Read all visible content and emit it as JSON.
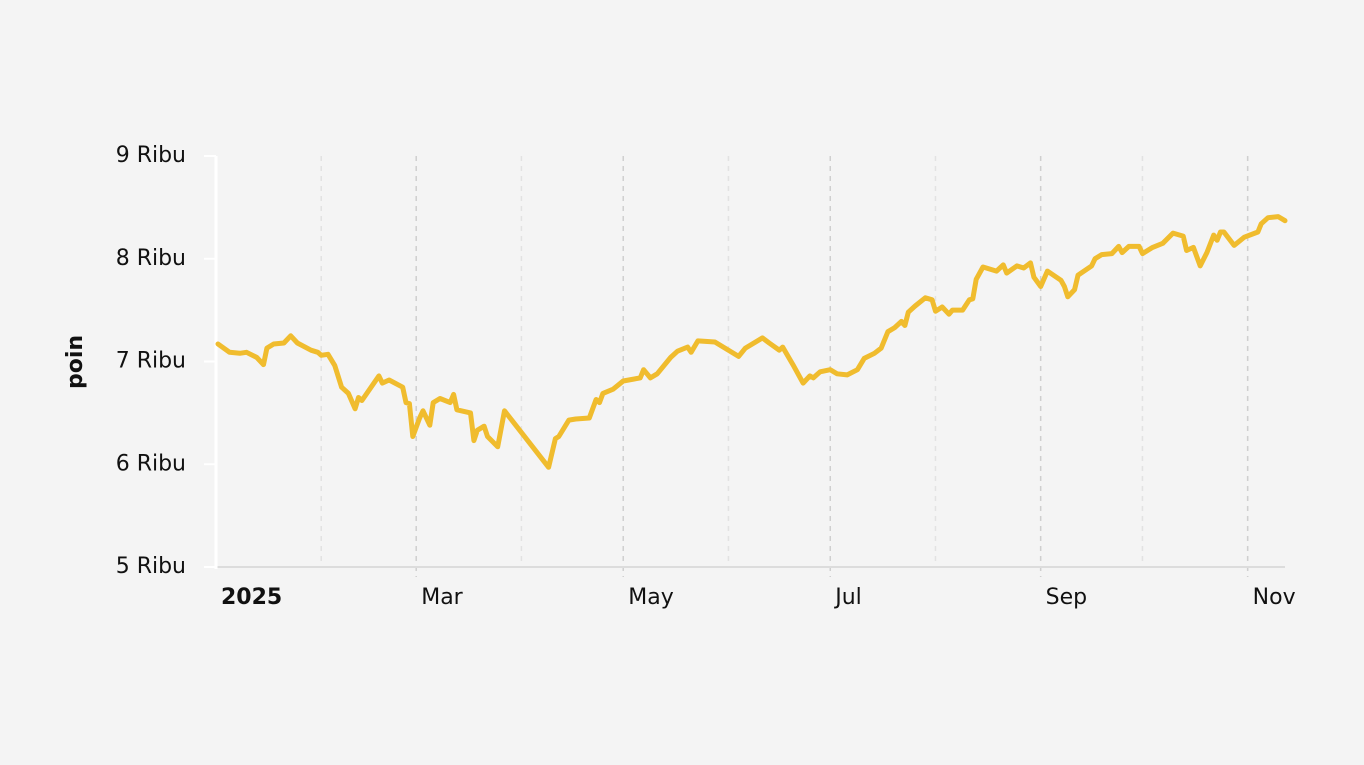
{
  "chart_data": {
    "type": "line",
    "y_label": "poin",
    "color": "#f0bc2e",
    "x": [
      0.6,
      4,
      7,
      9,
      12,
      14,
      15,
      17,
      20,
      22,
      24,
      28,
      30,
      31,
      33,
      35,
      37,
      39,
      41,
      42,
      43,
      48,
      49,
      51,
      55,
      56,
      57,
      58,
      60,
      61,
      63,
      64,
      66,
      69,
      70,
      71,
      75,
      76,
      77,
      79,
      80,
      83,
      85,
      98,
      100,
      101,
      104,
      106,
      110,
      112,
      113,
      114,
      117,
      120,
      125,
      126,
      128,
      130,
      134,
      136,
      139,
      140,
      142,
      147,
      154,
      156,
      161,
      163,
      166,
      167,
      170,
      173,
      175,
      176,
      178,
      181,
      183,
      186,
      189,
      191,
      194,
      196,
      198,
      200,
      202,
      203,
      204,
      206,
      209,
      211,
      212,
      214,
      216,
      217,
      220,
      222,
      223,
      224,
      226,
      230,
      232,
      233,
      236,
      238,
      240,
      241,
      243,
      245,
      249,
      250,
      251,
      253,
      254,
      258,
      259,
      261,
      264,
      266,
      267,
      269,
      272,
      273,
      276,
      279,
      282,
      285,
      286,
      288,
      290,
      292,
      294,
      295,
      296,
      297,
      300,
      303,
      307,
      308,
      310,
      313,
      315
    ],
    "values": [
      7170,
      7090,
      7080,
      7090,
      7040,
      6970,
      7130,
      7170,
      7180,
      7250,
      7180,
      7110,
      7090,
      7060,
      7070,
      6960,
      6750,
      6690,
      6540,
      6650,
      6620,
      6860,
      6790,
      6820,
      6750,
      6600,
      6590,
      6270,
      6450,
      6520,
      6380,
      6600,
      6640,
      6600,
      6680,
      6530,
      6500,
      6230,
      6330,
      6370,
      6270,
      6170,
      6520,
      5970,
      6250,
      6270,
      6430,
      6440,
      6450,
      6630,
      6600,
      6690,
      6730,
      6810,
      6840,
      6920,
      6840,
      6880,
      7040,
      7100,
      7140,
      7090,
      7200,
      7190,
      7050,
      7130,
      7230,
      7180,
      7110,
      7140,
      6970,
      6790,
      6860,
      6840,
      6900,
      6920,
      6880,
      6870,
      6920,
      7030,
      7080,
      7130,
      7290,
      7330,
      7390,
      7350,
      7480,
      7540,
      7620,
      7600,
      7490,
      7530,
      7460,
      7500,
      7500,
      7600,
      7610,
      7800,
      7920,
      7880,
      7940,
      7860,
      7930,
      7910,
      7960,
      7820,
      7730,
      7880,
      7790,
      7730,
      7630,
      7700,
      7840,
      7930,
      8000,
      8040,
      8050,
      8120,
      8060,
      8120,
      8120,
      8050,
      8110,
      8150,
      8250,
      8220,
      8080,
      8110,
      7930,
      8060,
      8230,
      8180,
      8260,
      8260,
      8130,
      8210,
      8260,
      8340,
      8400,
      8410,
      8370
    ],
    "xlim": [
      0,
      315
    ],
    "xticks": [
      {
        "value": 0,
        "label": "2025"
      },
      {
        "value": 59,
        "label": "Mar"
      },
      {
        "value": 120,
        "label": "May"
      },
      {
        "value": 181,
        "label": "Jul"
      },
      {
        "value": 243,
        "label": "Sep"
      },
      {
        "value": 304,
        "label": "Nov"
      }
    ],
    "xminor": [
      31,
      90,
      151,
      212,
      273
    ],
    "ylim": [
      5000,
      9000
    ],
    "yticks": [
      {
        "value": 5000,
        "label": "5 Ribu"
      },
      {
        "value": 6000,
        "label": "6 Ribu"
      },
      {
        "value": 7000,
        "label": "7 Ribu"
      },
      {
        "value": 8000,
        "label": "8 Ribu"
      },
      {
        "value": 9000,
        "label": "9 Ribu"
      }
    ],
    "grid": true
  }
}
